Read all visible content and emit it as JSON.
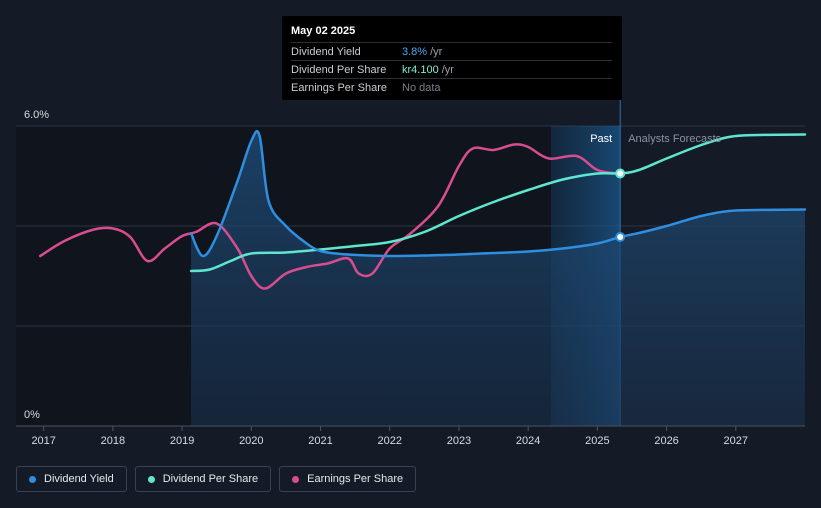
{
  "tooltip": {
    "date": "May 02 2025",
    "rows": [
      {
        "name": "Dividend Yield",
        "value": "3.8%",
        "unit": "/yr"
      },
      {
        "name": "Dividend Per Share",
        "value": "kr4.100",
        "unit": "/yr"
      },
      {
        "name": "Earnings Per Share",
        "value": "No data",
        "unit": ""
      }
    ]
  },
  "legend": [
    {
      "label": "Dividend Yield",
      "color": "#2f8ee0"
    },
    {
      "label": "Dividend Per Share",
      "color": "#5ee6cf"
    },
    {
      "label": "Earnings Per Share",
      "color": "#d94d8e"
    }
  ],
  "chart_data": {
    "type": "line",
    "title": "",
    "xlabel": "",
    "ylabel": "",
    "y_axis_labels": [
      "6.0%",
      "0%"
    ],
    "ylim": [
      0,
      6.0
    ],
    "xlim": [
      2016.6,
      2028.0
    ],
    "x_ticks": [
      "2017",
      "2018",
      "2019",
      "2020",
      "2021",
      "2022",
      "2023",
      "2024",
      "2025",
      "2026",
      "2027"
    ],
    "x_tick_values": [
      2017,
      2018,
      2019,
      2020,
      2021,
      2022,
      2023,
      2024,
      2025,
      2026,
      2027
    ],
    "regions": {
      "past_label": "Past",
      "forecast_label": "Analysts Forecasts",
      "past_start": 2024.33,
      "now": 2025.33
    },
    "grid": true,
    "colors": {
      "yield": "#2f8ee0",
      "dps": "#5ee6cf",
      "eps": "#d94d8e"
    },
    "series": [
      {
        "name": "Dividend Yield",
        "x": [
          2019.13,
          2019.3,
          2019.5,
          2019.8,
          2020.0,
          2020.12,
          2020.25,
          2020.5,
          2020.8,
          2021.0,
          2021.3,
          2021.7,
          2022.0,
          2022.5,
          2023.0,
          2023.5,
          2024.0,
          2024.5,
          2025.0,
          2025.33,
          2025.6,
          2026.0,
          2026.5,
          2026.9,
          2027.3,
          2028.0
        ],
        "y": [
          3.85,
          3.4,
          3.8,
          4.9,
          5.7,
          5.8,
          4.5,
          4.0,
          3.65,
          3.5,
          3.44,
          3.41,
          3.4,
          3.41,
          3.43,
          3.46,
          3.49,
          3.55,
          3.65,
          3.78,
          3.86,
          4.0,
          4.2,
          4.3,
          4.32,
          4.33
        ]
      },
      {
        "name": "Dividend Per Share",
        "x": [
          2019.13,
          2019.4,
          2019.7,
          2020.0,
          2020.5,
          2021.0,
          2021.5,
          2022.0,
          2022.5,
          2023.0,
          2023.5,
          2024.0,
          2024.5,
          2025.0,
          2025.33,
          2025.6,
          2026.0,
          2026.5,
          2026.9,
          2027.3,
          2028.0
        ],
        "y": [
          3.1,
          3.13,
          3.3,
          3.45,
          3.47,
          3.53,
          3.6,
          3.68,
          3.88,
          4.2,
          4.48,
          4.72,
          4.93,
          5.05,
          5.05,
          5.12,
          5.35,
          5.62,
          5.78,
          5.82,
          5.83
        ]
      },
      {
        "name": "Earnings Per Share",
        "x": [
          2016.95,
          2017.3,
          2017.7,
          2018.0,
          2018.25,
          2018.5,
          2018.75,
          2019.0,
          2019.2,
          2019.5,
          2019.8,
          2020.0,
          2020.2,
          2020.5,
          2020.8,
          2021.1,
          2021.4,
          2021.55,
          2021.75,
          2022.0,
          2022.3,
          2022.7,
          2023.0,
          2023.2,
          2023.5,
          2023.8,
          2024.0,
          2024.3,
          2024.7,
          2025.0,
          2025.3
        ],
        "y": [
          3.4,
          3.7,
          3.92,
          3.95,
          3.78,
          3.3,
          3.55,
          3.8,
          3.88,
          4.05,
          3.55,
          3.0,
          2.75,
          3.05,
          3.18,
          3.25,
          3.35,
          3.05,
          3.05,
          3.55,
          3.85,
          4.4,
          5.2,
          5.55,
          5.52,
          5.63,
          5.58,
          5.35,
          5.4,
          5.12,
          5.05
        ]
      }
    ]
  }
}
